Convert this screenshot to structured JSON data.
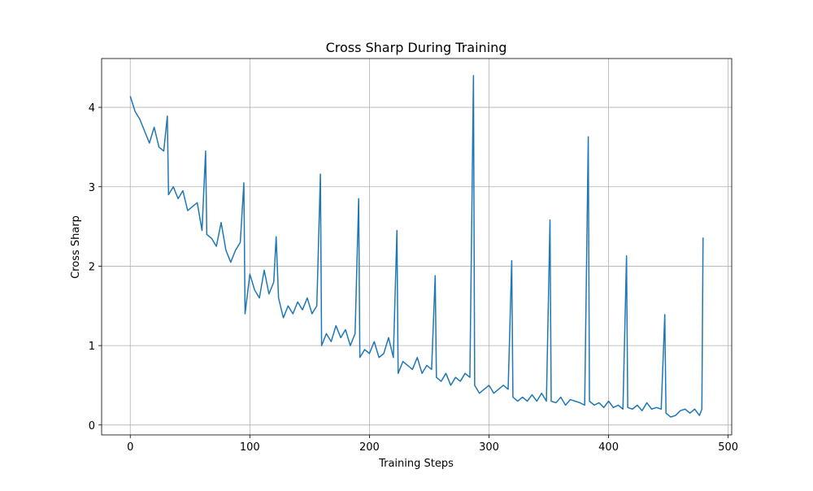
{
  "chart_data": {
    "type": "line",
    "title": "Cross Sharp During Training",
    "x_label": "Training Steps",
    "y_label": "Cross Sharp",
    "x": [
      0,
      4,
      8,
      12,
      16,
      20,
      24,
      28,
      31,
      32,
      36,
      40,
      44,
      48,
      52,
      56,
      60,
      63,
      64,
      68,
      72,
      76,
      80,
      84,
      88,
      92,
      95,
      96,
      100,
      104,
      108,
      112,
      116,
      120,
      122,
      124,
      128,
      132,
      136,
      140,
      144,
      148,
      152,
      156,
      159,
      160,
      164,
      168,
      172,
      176,
      180,
      184,
      188,
      191,
      192,
      196,
      200,
      204,
      208,
      212,
      216,
      220,
      223,
      224,
      228,
      232,
      236,
      240,
      244,
      248,
      252,
      255,
      256,
      260,
      264,
      268,
      272,
      276,
      280,
      284,
      287,
      288,
      292,
      296,
      300,
      304,
      308,
      312,
      316,
      319,
      320,
      324,
      328,
      332,
      336,
      340,
      344,
      348,
      351,
      352,
      356,
      360,
      364,
      368,
      372,
      376,
      380,
      383,
      384,
      388,
      392,
      396,
      400,
      404,
      408,
      412,
      415,
      416,
      420,
      424,
      428,
      432,
      436,
      440,
      444,
      447,
      448,
      452,
      456,
      460,
      464,
      468,
      472,
      476,
      478,
      479
    ],
    "values": [
      4.14,
      3.95,
      3.85,
      3.7,
      3.55,
      3.75,
      3.5,
      3.45,
      3.89,
      2.9,
      3.0,
      2.85,
      2.95,
      2.7,
      2.75,
      2.8,
      2.45,
      3.45,
      2.4,
      2.35,
      2.25,
      2.55,
      2.2,
      2.05,
      2.2,
      2.3,
      3.05,
      1.4,
      1.9,
      1.7,
      1.6,
      1.95,
      1.65,
      1.8,
      2.37,
      1.6,
      1.35,
      1.5,
      1.4,
      1.55,
      1.45,
      1.6,
      1.4,
      1.5,
      3.16,
      1.0,
      1.15,
      1.05,
      1.25,
      1.1,
      1.2,
      1.0,
      1.15,
      2.85,
      0.85,
      0.95,
      0.9,
      1.05,
      0.85,
      0.9,
      1.1,
      0.85,
      2.45,
      0.65,
      0.8,
      0.75,
      0.7,
      0.85,
      0.65,
      0.75,
      0.7,
      1.88,
      0.6,
      0.55,
      0.65,
      0.5,
      0.6,
      0.55,
      0.65,
      0.6,
      4.4,
      0.5,
      0.4,
      0.45,
      0.5,
      0.4,
      0.45,
      0.5,
      0.45,
      2.07,
      0.35,
      0.3,
      0.35,
      0.3,
      0.38,
      0.3,
      0.4,
      0.3,
      2.58,
      0.3,
      0.28,
      0.35,
      0.25,
      0.32,
      0.3,
      0.28,
      0.25,
      3.63,
      0.3,
      0.25,
      0.28,
      0.22,
      0.3,
      0.22,
      0.25,
      0.2,
      2.13,
      0.22,
      0.2,
      0.25,
      0.18,
      0.28,
      0.2,
      0.22,
      0.2,
      1.39,
      0.15,
      0.1,
      0.12,
      0.18,
      0.2,
      0.15,
      0.2,
      0.12,
      0.2,
      2.36
    ],
    "color": "#1f77b4",
    "xlim": [
      -23.95,
      502.95
    ],
    "ylim": [
      -0.125,
      4.615
    ],
    "xticks": [
      0,
      100,
      200,
      300,
      400,
      500
    ],
    "yticks": [
      0,
      1,
      2,
      3,
      4
    ],
    "grid": true
  }
}
